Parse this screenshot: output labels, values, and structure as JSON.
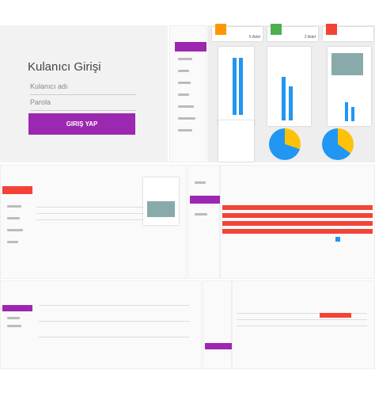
{
  "login": {
    "title": "Kulanıcı Girişi",
    "username_placeholder": "Kulanıcı adı",
    "password_placeholder": "Parola",
    "button": "GIRIŞ YAP"
  },
  "dashboard": {
    "cards": [
      {
        "count": "5 Adet"
      },
      {
        "count": "2 Adet"
      }
    ]
  }
}
